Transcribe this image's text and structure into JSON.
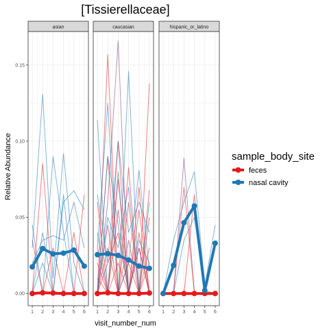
{
  "chart_data": {
    "type": "line",
    "title": "[Tissierellaceae]",
    "xlabel": "visit_number_num",
    "ylabel": "Relative Abundance",
    "x_ticks": [
      1,
      2,
      3,
      4,
      5,
      6
    ],
    "y_ticks": [
      0.0,
      0.05,
      0.1,
      0.15
    ],
    "y_tick_labels": [
      "0.00",
      "0.05",
      "0.10",
      "0.15"
    ],
    "xlim": [
      0.6,
      6.4
    ],
    "ylim": [
      -0.008,
      0.172
    ],
    "grid": true,
    "legend": {
      "title": "sample_body_site",
      "position": "right",
      "entries": [
        {
          "label": "feces",
          "color": "#E41A1C"
        },
        {
          "label": "nasal cavity",
          "color": "#1F78B4"
        }
      ]
    },
    "panels": [
      {
        "strip": "asian",
        "series": [
          {
            "name": "feces",
            "color": "#E41A1C",
            "x": [
              1,
              2,
              3,
              4,
              5,
              6
            ],
            "y": [
              0.0,
              0.0005,
              0.0003,
              0.0,
              0.0,
              0.0
            ]
          },
          {
            "name": "nasal cavity",
            "color": "#1F78B4",
            "x": [
              1,
              2,
              3,
              4,
              5,
              6
            ],
            "y": [
              0.0175,
              0.0295,
              0.026,
              0.0265,
              0.0285,
              0.018
            ]
          }
        ]
      },
      {
        "strip": "caucasian",
        "series": [
          {
            "name": "feces",
            "color": "#E41A1C",
            "x": [
              1,
              2,
              3,
              4,
              5,
              6
            ],
            "y": [
              0.0,
              0.0005,
              0.0,
              0.0,
              0.0,
              0.0003
            ]
          },
          {
            "name": "nasal cavity",
            "color": "#1F78B4",
            "x": [
              1,
              2,
              3,
              4,
              5,
              6
            ],
            "y": [
              0.0255,
              0.0262,
              0.025,
              0.022,
              0.018,
              0.0165
            ]
          }
        ]
      },
      {
        "strip": "hispanic_or_latino",
        "series": [
          {
            "name": "feces",
            "color": "#E41A1C",
            "x": [
              1,
              2,
              3,
              4,
              5,
              6
            ],
            "y": [
              0.0,
              0.0,
              0.0,
              0.0,
              0.0,
              0.0
            ]
          },
          {
            "name": "nasal cavity",
            "color": "#1F78B4",
            "x": [
              1,
              2,
              3,
              4,
              5,
              6
            ],
            "y": [
              0.0,
              0.0185,
              0.0465,
              0.0575,
              0.002,
              0.033
            ]
          }
        ]
      }
    ],
    "background_lines": [
      {
        "panel": 0,
        "color": "#E41A1C",
        "x": [
          1,
          2,
          3,
          4,
          5,
          6
        ],
        "y": [
          0.0,
          0.0855,
          0.0,
          0.0,
          0.0,
          0.0
        ]
      },
      {
        "panel": 0,
        "color": "#E41A1C",
        "x": [
          1,
          2,
          3,
          4,
          5,
          6
        ],
        "y": [
          0.035,
          0.0,
          0.03,
          0.0,
          0.0,
          0.065
        ]
      },
      {
        "panel": 0,
        "color": "#E41A1C",
        "x": [
          1,
          2,
          3,
          4,
          5,
          6
        ],
        "y": [
          0.0,
          0.0,
          0.0,
          0.0,
          0.04,
          0.0
        ]
      },
      {
        "panel": 0,
        "color": "#1F78B4",
        "x": [
          1,
          2,
          3,
          4,
          5,
          6
        ],
        "y": [
          0.045,
          0.0,
          0.09,
          0.04,
          0.0,
          0.0
        ]
      },
      {
        "panel": 0,
        "color": "#1F78B4",
        "x": [
          1,
          2,
          3,
          4,
          5,
          6
        ],
        "y": [
          0.03,
          0.131,
          0.01,
          0.092,
          0.02,
          0.0
        ]
      },
      {
        "panel": 0,
        "color": "#1F78B4",
        "x": [
          1,
          2,
          3,
          4,
          5,
          6
        ],
        "y": [
          0.0,
          0.04,
          0.0,
          0.06,
          0.0675,
          0.055
        ]
      },
      {
        "panel": 0,
        "color": "#1F78B4",
        "x": [
          1,
          2,
          3,
          4,
          5,
          6
        ],
        "y": [
          0.02,
          0.035,
          0.038,
          0.035,
          0.06,
          0.03
        ]
      },
      {
        "panel": 0,
        "color": "#1F78B4",
        "x": [
          1,
          2,
          3,
          4,
          5,
          6
        ],
        "y": [
          0.0,
          0.02,
          0.0,
          0.065,
          0.0,
          0.0
        ]
      },
      {
        "panel": 1,
        "color": "#E41A1C",
        "x": [
          1,
          2,
          3,
          4,
          5,
          6
        ],
        "y": [
          0.0,
          0.157,
          0.0,
          0.02,
          0.0,
          0.138
        ]
      },
      {
        "panel": 1,
        "color": "#E41A1C",
        "x": [
          1,
          2,
          3,
          4,
          5,
          6
        ],
        "y": [
          0.06,
          0.0,
          0.1,
          0.0,
          0.07,
          0.0
        ]
      },
      {
        "panel": 1,
        "color": "#E41A1C",
        "x": [
          1,
          2,
          3,
          4,
          5,
          6
        ],
        "y": [
          0.0,
          0.09,
          0.0,
          0.083,
          0.0,
          0.05
        ]
      },
      {
        "panel": 1,
        "color": "#E41A1C",
        "x": [
          1,
          2,
          3,
          4,
          5,
          6
        ],
        "y": [
          0.03,
          0.0,
          0.075,
          0.0,
          0.04,
          0.0
        ]
      },
      {
        "panel": 1,
        "color": "#E41A1C",
        "x": [
          1,
          2,
          3,
          4,
          5,
          6
        ],
        "y": [
          0.0,
          0.045,
          0.0,
          0.06,
          0.0,
          0.068
        ]
      },
      {
        "panel": 1,
        "color": "#E41A1C",
        "x": [
          1,
          2,
          3,
          4,
          5,
          6
        ],
        "y": [
          0.02,
          0.0,
          0.055,
          0.0,
          0.03,
          0.0
        ]
      },
      {
        "panel": 1,
        "color": "#E41A1C",
        "x": [
          1,
          2,
          3,
          4,
          5,
          6
        ],
        "y": [
          0.0,
          0.03,
          0.0,
          0.035,
          0.0,
          0.02
        ]
      },
      {
        "panel": 1,
        "color": "#E41A1C",
        "x": [
          1,
          2,
          3,
          4,
          5,
          6
        ],
        "y": [
          0.01,
          0.0,
          0.02,
          0.0,
          0.055,
          0.0
        ]
      },
      {
        "panel": 1,
        "color": "#E41A1C",
        "x": [
          1,
          2,
          3,
          4,
          5,
          6
        ],
        "y": [
          0.0,
          0.02,
          0.04,
          0.0,
          0.0,
          0.03
        ]
      },
      {
        "panel": 1,
        "color": "#7B3F7A",
        "x": [
          1,
          2,
          3,
          4,
          5,
          6
        ],
        "y": [
          0.0,
          0.06,
          0.166,
          0.0,
          0.03,
          0.0
        ]
      },
      {
        "panel": 1,
        "color": "#1F78B4",
        "x": [
          1,
          2,
          3,
          4,
          5,
          6
        ],
        "y": [
          0.114,
          0.0,
          0.08,
          0.0,
          0.0,
          0.0
        ]
      },
      {
        "panel": 1,
        "color": "#1F78B4",
        "x": [
          1,
          2,
          3,
          4,
          5,
          6
        ],
        "y": [
          0.03,
          0.125,
          0.0,
          0.146,
          0.0,
          0.06
        ]
      },
      {
        "panel": 1,
        "color": "#1F78B4",
        "x": [
          1,
          2,
          3,
          4,
          5,
          6
        ],
        "y": [
          0.065,
          0.02,
          0.1,
          0.04,
          0.06,
          0.04
        ]
      },
      {
        "panel": 1,
        "color": "#1F78B4",
        "x": [
          1,
          2,
          3,
          4,
          5,
          6
        ],
        "y": [
          0.0,
          0.05,
          0.03,
          0.07,
          0.0,
          0.0
        ]
      },
      {
        "panel": 1,
        "color": "#1F78B4",
        "x": [
          1,
          2,
          3,
          4,
          5,
          6
        ],
        "y": [
          0.04,
          0.0,
          0.0,
          0.02,
          0.081,
          0.015
        ]
      },
      {
        "panel": 1,
        "color": "#1F78B4",
        "x": [
          1,
          2,
          3,
          4,
          5,
          6
        ],
        "y": [
          0.0,
          0.09,
          0.045,
          0.0,
          0.035,
          0.02
        ]
      },
      {
        "panel": 2,
        "color": "#7B3F7A",
        "x": [
          1,
          2,
          3,
          4,
          5,
          6
        ],
        "y": [
          0.0,
          0.0,
          0.089,
          0.0,
          0.0,
          0.0
        ]
      },
      {
        "panel": 2,
        "color": "#E41A1C",
        "x": [
          1,
          2,
          3,
          4,
          5,
          6
        ],
        "y": [
          0.0,
          0.0,
          0.07,
          0.0,
          0.0,
          0.0
        ]
      },
      {
        "panel": 2,
        "color": "#E41A1C",
        "x": [
          1,
          2,
          3,
          4,
          5,
          6
        ],
        "y": [
          0.0,
          0.0,
          0.0,
          0.065,
          0.0,
          0.0
        ]
      },
      {
        "panel": 2,
        "color": "#1F78B4",
        "x": [
          1,
          2,
          3,
          4,
          5,
          6
        ],
        "y": [
          0.0,
          0.035,
          0.06,
          0.08,
          0.005,
          0.045
        ]
      },
      {
        "panel": 2,
        "color": "#1F78B4",
        "x": [
          1,
          2,
          3,
          4,
          5,
          6
        ],
        "y": [
          0.0,
          0.0,
          0.035,
          0.05,
          0.002,
          0.0
        ]
      }
    ]
  }
}
